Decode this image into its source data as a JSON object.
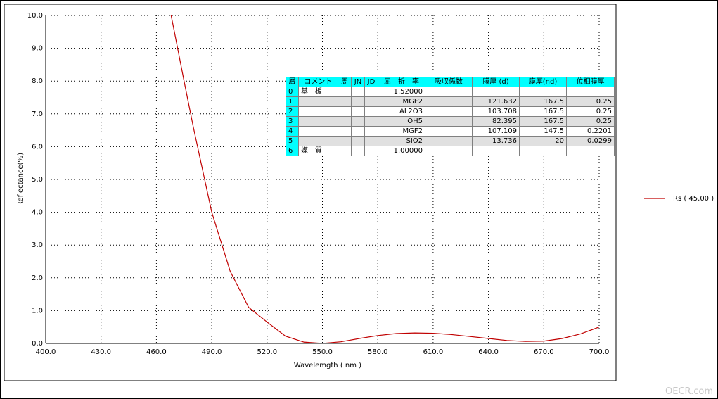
{
  "chart_data": {
    "type": "line",
    "xlabel": "Wavelemgth ( nm )",
    "ylabel": "Reflectance(%)",
    "x": [
      468,
      475,
      480,
      490,
      500,
      510,
      520,
      530,
      540,
      550,
      560,
      570,
      580,
      590,
      600,
      610,
      620,
      630,
      640,
      650,
      660,
      670,
      680,
      690,
      700
    ],
    "series": [
      {
        "name": "Rs ( 45.00 )",
        "color": "#c00000",
        "values": [
          10.0,
          8.0,
          6.6,
          4.0,
          2.2,
          1.1,
          0.65,
          0.22,
          0.04,
          0.0,
          0.05,
          0.15,
          0.24,
          0.3,
          0.32,
          0.31,
          0.27,
          0.21,
          0.15,
          0.09,
          0.06,
          0.07,
          0.15,
          0.29,
          0.5
        ]
      }
    ],
    "xlim": [
      400,
      700
    ],
    "ylim": [
      0,
      10
    ],
    "xticks": [
      {
        "value": 400,
        "label": "400.0"
      },
      {
        "value": 430,
        "label": "430.0"
      },
      {
        "value": 460,
        "label": "460.0"
      },
      {
        "value": 490,
        "label": "490.0"
      },
      {
        "value": 520,
        "label": "520.0"
      },
      {
        "value": 550,
        "label": "550.0"
      },
      {
        "value": 580,
        "label": "580.0"
      },
      {
        "value": 610,
        "label": "610.0"
      },
      {
        "value": 640,
        "label": "640.0"
      },
      {
        "value": 670,
        "label": "670.0"
      },
      {
        "value": 700,
        "label": "700.0"
      }
    ],
    "yticks": [
      {
        "value": 0,
        "label": "0.0"
      },
      {
        "value": 1,
        "label": "1.0"
      },
      {
        "value": 2,
        "label": "2.0"
      },
      {
        "value": 3,
        "label": "3.0"
      },
      {
        "value": 4,
        "label": "4.0"
      },
      {
        "value": 5,
        "label": "5.0"
      },
      {
        "value": 6,
        "label": "6.0"
      },
      {
        "value": 7,
        "label": "7.0"
      },
      {
        "value": 8,
        "label": "8.0"
      },
      {
        "value": 9,
        "label": "9.0"
      },
      {
        "value": 10,
        "label": "10.0"
      }
    ],
    "grid": true,
    "legend": "right"
  },
  "table": {
    "header": [
      "層",
      "コメント",
      "周",
      "JN",
      "JD",
      "屈　折　率",
      "吸収係数",
      "膜厚 (d)",
      "膜厚(nd)",
      "位相膜厚"
    ],
    "rows": [
      [
        "0",
        "基　板",
        null,
        null,
        null,
        "1.52000",
        null,
        null,
        null,
        null
      ],
      [
        "1",
        null,
        null,
        null,
        null,
        "MGF2",
        null,
        "121.632",
        "167.5",
        "0.25"
      ],
      [
        "2",
        null,
        null,
        null,
        null,
        "AL2O3",
        null,
        "103.708",
        "167.5",
        "0.25"
      ],
      [
        "3",
        null,
        null,
        null,
        null,
        "OH5",
        null,
        "82.395",
        "167.5",
        "0.25"
      ],
      [
        "4",
        null,
        null,
        null,
        null,
        "MGF2",
        null,
        "107.109",
        "147.5",
        "0.2201"
      ],
      [
        "5",
        null,
        null,
        null,
        null,
        "SIO2",
        null,
        "13.736",
        "20",
        "0.0299"
      ],
      [
        "6",
        "媒　質",
        null,
        null,
        null,
        "1.00000",
        null,
        null,
        null,
        null
      ]
    ]
  },
  "watermark": "OECR.com"
}
